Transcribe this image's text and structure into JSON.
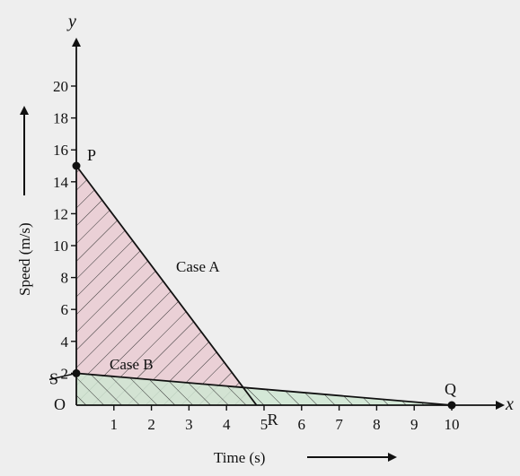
{
  "chart_data": {
    "type": "line",
    "xlabel": "Time (s)",
    "ylabel": "Speed (m/s)",
    "x_axis_name": "x",
    "y_axis_name": "y",
    "origin_label": "O",
    "xlim": [
      0,
      10
    ],
    "ylim": [
      0,
      20
    ],
    "x_ticks": [
      1,
      2,
      3,
      4,
      5,
      6,
      7,
      8,
      9,
      10
    ],
    "y_ticks": [
      2,
      4,
      6,
      8,
      10,
      12,
      14,
      16,
      18,
      20
    ],
    "grid": false,
    "series": [
      {
        "name": "Case A",
        "x": [
          0,
          4.8
        ],
        "y": [
          15,
          0
        ],
        "color": "#e8c8d0"
      },
      {
        "name": "Case B",
        "x": [
          0,
          10
        ],
        "y": [
          2,
          0
        ],
        "color": "#cfe6d2"
      }
    ],
    "points": [
      {
        "label": "P",
        "x": 0,
        "y": 15
      },
      {
        "label": "Q",
        "x": 10,
        "y": 0
      },
      {
        "label": "R",
        "x": 4.8,
        "y": 0
      },
      {
        "label": "S",
        "x": 0,
        "y": 2
      }
    ]
  }
}
